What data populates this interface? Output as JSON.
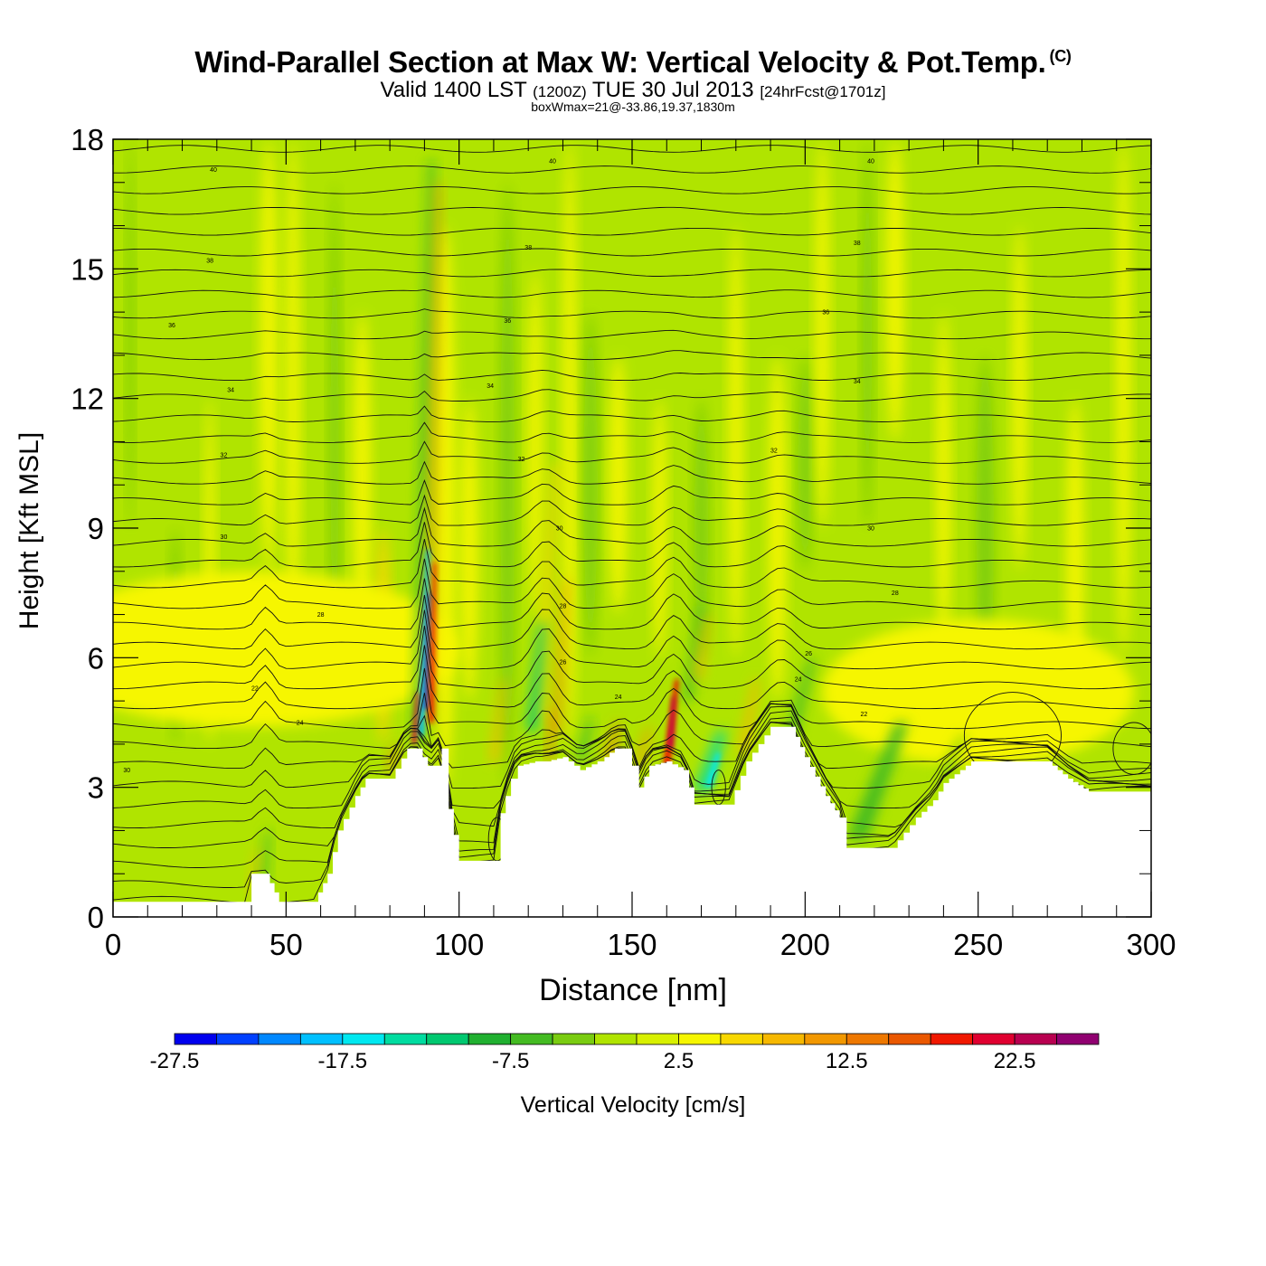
{
  "titles": {
    "main": "Wind-Parallel Section at Max W: Vertical Velocity & Pot.Temp.",
    "copyright": "(C)",
    "valid_prefix": "Valid 1400 LST",
    "valid_utc": "(1200Z)",
    "valid_date": "TUE 30 Jul 2013",
    "forecast": "[24hrFcst@1701z]",
    "box_wmax": "boxWmax=21@-33.86,19.37,1830m"
  },
  "chart_data": {
    "type": "heatmap",
    "title": "Wind-Parallel Section at Max W: Vertical Velocity & Pot.Temp.",
    "xlabel": "Distance [nm]",
    "ylabel": "Height [Kft MSL]",
    "xlim": [
      0,
      300
    ],
    "ylim": [
      0,
      18
    ],
    "x_ticks": [
      "0",
      "50",
      "100",
      "150",
      "200",
      "250",
      "300"
    ],
    "y_ticks": [
      "0",
      "3",
      "6",
      "9",
      "12",
      "15",
      "18"
    ],
    "colorbar": {
      "label": "Vertical Velocity [cm/s]",
      "tick_labels": [
        "-27.5",
        "-17.5",
        "-7.5",
        "2.5",
        "12.5",
        "22.5"
      ],
      "bins": [
        -27.5,
        -25,
        -22.5,
        -20,
        -17.5,
        -15,
        -12.5,
        -10,
        -7.5,
        -5,
        -2.5,
        0,
        2.5,
        5,
        7.5,
        10,
        12.5,
        15,
        17.5,
        20,
        22.5,
        25
      ],
      "colors": [
        "#0000ee",
        "#0040ff",
        "#0088ff",
        "#00c0ff",
        "#00e8f0",
        "#00dca0",
        "#00c870",
        "#20b030",
        "#44bb22",
        "#7acc11",
        "#b0e400",
        "#d8f000",
        "#f6f600",
        "#f8d800",
        "#f6b800",
        "#f29800",
        "#ee7800",
        "#ea5800",
        "#f01800",
        "#e00030",
        "#b80050",
        "#900070"
      ]
    },
    "vertical_velocity_features": [
      {
        "distance": 90,
        "height_base": 3.5,
        "height_top": 17.5,
        "min_cm_s": -27.5,
        "max_cm_s": 20
      },
      {
        "distance": 125,
        "height_base": 3.5,
        "height_top": 10,
        "min_cm_s": -15,
        "max_cm_s": 12.5
      },
      {
        "distance": 162,
        "height_base": 3.2,
        "height_top": 6,
        "min_cm_s": -17.5,
        "max_cm_s": 21
      }
    ],
    "terrain_kft": [
      [
        0,
        0.35
      ],
      [
        35,
        0.35
      ],
      [
        38,
        0.35
      ],
      [
        40,
        1.0
      ],
      [
        44,
        1.0
      ],
      [
        48,
        0.35
      ],
      [
        58,
        0.35
      ],
      [
        62,
        1.0
      ],
      [
        65,
        2.0
      ],
      [
        70,
        2.8
      ],
      [
        73,
        3.2
      ],
      [
        80,
        3.2
      ],
      [
        85,
        3.9
      ],
      [
        88,
        3.9
      ],
      [
        91,
        3.5
      ],
      [
        93,
        3.5
      ],
      [
        95,
        3.9
      ],
      [
        97,
        2.5
      ],
      [
        100,
        1.3
      ],
      [
        110,
        1.3
      ],
      [
        112,
        2.4
      ],
      [
        115,
        3.2
      ],
      [
        117,
        3.5
      ],
      [
        122,
        3.6
      ],
      [
        125,
        3.6
      ],
      [
        130,
        3.7
      ],
      [
        135,
        3.4
      ],
      [
        140,
        3.6
      ],
      [
        142,
        3.7
      ],
      [
        145,
        3.9
      ],
      [
        148,
        3.9
      ],
      [
        150,
        3.5
      ],
      [
        152,
        3.0
      ],
      [
        155,
        3.5
      ],
      [
        160,
        3.6
      ],
      [
        165,
        3.4
      ],
      [
        168,
        2.6
      ],
      [
        178,
        2.6
      ],
      [
        183,
        3.6
      ],
      [
        190,
        4.4
      ],
      [
        196,
        4.4
      ],
      [
        200,
        3.7
      ],
      [
        206,
        2.8
      ],
      [
        210,
        2.3
      ],
      [
        212,
        1.6
      ],
      [
        225,
        1.6
      ],
      [
        232,
        2.3
      ],
      [
        237,
        2.7
      ],
      [
        240,
        3.1
      ],
      [
        248,
        3.6
      ],
      [
        270,
        3.6
      ],
      [
        276,
        3.2
      ],
      [
        282,
        2.9
      ],
      [
        300,
        2.9
      ]
    ],
    "theta_contour_labels": [
      {
        "text": "40",
        "x": 29,
        "y": 17.3
      },
      {
        "text": "40",
        "x": 127,
        "y": 17.5
      },
      {
        "text": "40",
        "x": 219,
        "y": 17.5
      },
      {
        "text": "38",
        "x": 28,
        "y": 15.2
      },
      {
        "text": "38",
        "x": 120,
        "y": 15.5
      },
      {
        "text": "38",
        "x": 215,
        "y": 15.6
      },
      {
        "text": "36",
        "x": 17,
        "y": 13.7
      },
      {
        "text": "36",
        "x": 114,
        "y": 13.8
      },
      {
        "text": "36",
        "x": 206,
        "y": 14.0
      },
      {
        "text": "34",
        "x": 34,
        "y": 12.2
      },
      {
        "text": "34",
        "x": 109,
        "y": 12.3
      },
      {
        "text": "34",
        "x": 215,
        "y": 12.4
      },
      {
        "text": "32",
        "x": 32,
        "y": 10.7
      },
      {
        "text": "32",
        "x": 118,
        "y": 10.6
      },
      {
        "text": "32",
        "x": 191,
        "y": 10.8
      },
      {
        "text": "30",
        "x": 32,
        "y": 8.8
      },
      {
        "text": "30",
        "x": 129,
        "y": 9.0
      },
      {
        "text": "30",
        "x": 219,
        "y": 9.0
      },
      {
        "text": "28",
        "x": 60,
        "y": 7.0
      },
      {
        "text": "28",
        "x": 130,
        "y": 7.2
      },
      {
        "text": "28",
        "x": 226,
        "y": 7.5
      },
      {
        "text": "26",
        "x": 130,
        "y": 5.9
      },
      {
        "text": "26",
        "x": 201,
        "y": 6.1
      },
      {
        "text": "24",
        "x": 146,
        "y": 5.1
      },
      {
        "text": "24",
        "x": 198,
        "y": 5.5
      },
      {
        "text": "22",
        "x": 41,
        "y": 5.3
      },
      {
        "text": "22",
        "x": 217,
        "y": 4.7
      },
      {
        "text": "24",
        "x": 54,
        "y": 4.5
      },
      {
        "text": "30",
        "x": 4,
        "y": 3.4
      }
    ]
  },
  "colorbar_title": "Vertical Velocity [cm/s]"
}
